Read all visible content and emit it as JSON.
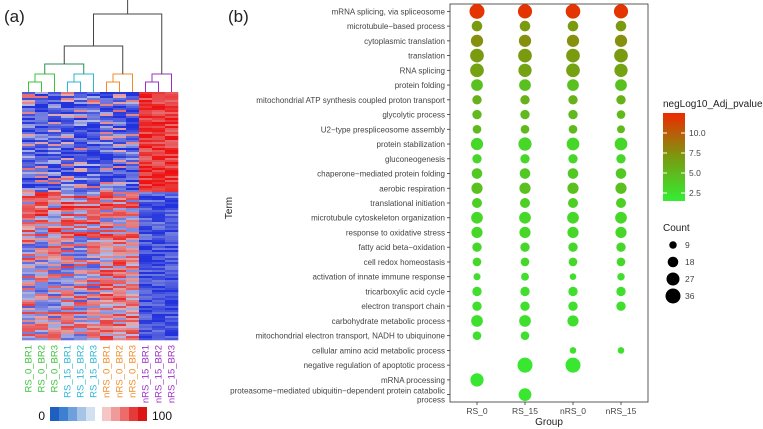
{
  "panels": {
    "a": "(a)",
    "b": "(b)"
  },
  "heatmap": {
    "samples": [
      {
        "name": "RS_0_BR1",
        "color": "#3ec23e"
      },
      {
        "name": "RS_0_BR2",
        "color": "#3ec23e"
      },
      {
        "name": "RS_0_BR3",
        "color": "#3ec23e"
      },
      {
        "name": "RS_15_BR1",
        "color": "#2bb6d6"
      },
      {
        "name": "RS_15_BR2",
        "color": "#2bb6d6"
      },
      {
        "name": "RS_15_BR3",
        "color": "#2bb6d6"
      },
      {
        "name": "nRS_0_BR1",
        "color": "#f08c28"
      },
      {
        "name": "nRS_0_BR2",
        "color": "#f08c28"
      },
      {
        "name": "nRS_0_BR3",
        "color": "#f08c28"
      },
      {
        "name": "nRS_15_BR1",
        "color": "#9b2fc4"
      },
      {
        "name": "nRS_15_BR2",
        "color": "#9b2fc4"
      },
      {
        "name": "nRS_15_BR3",
        "color": "#9b2fc4"
      }
    ],
    "scale": {
      "min_label": "0",
      "max_label": "100"
    }
  },
  "chart_data": {
    "type": "scatter",
    "subtype": "dotplot",
    "xlabel": "Group",
    "ylabel": "Term",
    "groups": [
      "RS_0",
      "RS_15",
      "nRS_0",
      "nRS_15"
    ],
    "terms": [
      "mRNA splicing, via spliceosome",
      "microtubule−based process",
      "cytoplasmic translation",
      "translation",
      "RNA splicing",
      "protein folding",
      "mitochondrial ATP synthesis coupled proton transport",
      "glycolytic process",
      "U2−type prespliceosome assembly",
      "protein stabilization",
      "gluconeogenesis",
      "chaperone−mediated protein folding",
      "aerobic respiration",
      "translational initiation",
      "microtubule cytoskeleton organization",
      "response to oxidative stress",
      "fatty acid beta−oxidation",
      "cell redox homeostasis",
      "activation of innate immune response",
      "tricarboxylic acid cycle",
      "electron transport chain",
      "carbohydrate metabolic process",
      "mitochondrial electron transport, NADH to ubiquinone",
      "cellular amino acid metabolic process",
      "negative regulation of apoptotic process",
      "mRNA processing",
      "proteasome−mediated ubiquitin−dependent protein catabolic process"
    ],
    "count": [
      [
        36,
        32,
        34,
        32
      ],
      [
        18,
        18,
        18,
        18
      ],
      [
        24,
        24,
        24,
        24
      ],
      [
        30,
        30,
        30,
        30
      ],
      [
        30,
        28,
        30,
        28
      ],
      [
        22,
        22,
        22,
        22
      ],
      [
        14,
        14,
        14,
        14
      ],
      [
        14,
        14,
        14,
        12
      ],
      [
        12,
        12,
        12,
        10
      ],
      [
        24,
        28,
        26,
        26
      ],
      [
        14,
        14,
        14,
        14
      ],
      [
        18,
        18,
        18,
        18
      ],
      [
        20,
        20,
        20,
        20
      ],
      [
        16,
        16,
        16,
        16
      ],
      [
        22,
        22,
        22,
        22
      ],
      [
        20,
        20,
        20,
        20
      ],
      [
        14,
        14,
        14,
        14
      ],
      [
        12,
        12,
        12,
        12
      ],
      [
        8,
        10,
        7,
        9
      ],
      [
        14,
        14,
        14,
        14
      ],
      [
        14,
        14,
        14,
        14
      ],
      [
        22,
        22,
        20,
        null
      ],
      [
        12,
        12,
        null,
        null
      ],
      [
        null,
        null,
        7,
        7
      ],
      [
        null,
        36,
        36,
        null
      ],
      [
        28,
        null,
        null,
        null
      ],
      [
        null,
        26,
        null,
        null
      ]
    ],
    "pvalue": [
      [
        12,
        12,
        12,
        12
      ],
      [
        7,
        7,
        7,
        7
      ],
      [
        7.5,
        7.5,
        7.5,
        7.5
      ],
      [
        7,
        7,
        7,
        7
      ],
      [
        6.5,
        6.5,
        6.5,
        6.5
      ],
      [
        4.5,
        4.5,
        4.5,
        4.5
      ],
      [
        5.5,
        5.5,
        5.5,
        5.5
      ],
      [
        5,
        5,
        5,
        5
      ],
      [
        5,
        5,
        5,
        5
      ],
      [
        3,
        3,
        3,
        3
      ],
      [
        3,
        3,
        3,
        3
      ],
      [
        4,
        4,
        4,
        4
      ],
      [
        4.5,
        4.5,
        4.5,
        4.5
      ],
      [
        3.5,
        3.5,
        3.5,
        3.5
      ],
      [
        3,
        3,
        3,
        3
      ],
      [
        3,
        3,
        3,
        3
      ],
      [
        3,
        3,
        3,
        3
      ],
      [
        3,
        3,
        3,
        3
      ],
      [
        2.5,
        2.5,
        2.5,
        2.5
      ],
      [
        2.5,
        2.5,
        2.5,
        2.5
      ],
      [
        2.5,
        2.5,
        2.5,
        2.5
      ],
      [
        2.5,
        2.5,
        2.5,
        null
      ],
      [
        2.5,
        2.5,
        null,
        null
      ],
      [
        null,
        null,
        2.5,
        2.5
      ],
      [
        null,
        2,
        2,
        null
      ],
      [
        2,
        null,
        null,
        null
      ],
      [
        null,
        2,
        null,
        null
      ]
    ],
    "legend_color": {
      "title": "negLog10_Adj_pvalue",
      "ticks": [
        10.0,
        7.5,
        5.0,
        2.5
      ],
      "range": [
        1.5,
        12.5
      ],
      "colors": [
        "#33ee33",
        "#7a9a10",
        "#ee2a00"
      ]
    },
    "legend_size": {
      "title": "Count",
      "ticks": [
        9,
        18,
        27,
        36
      ]
    }
  }
}
